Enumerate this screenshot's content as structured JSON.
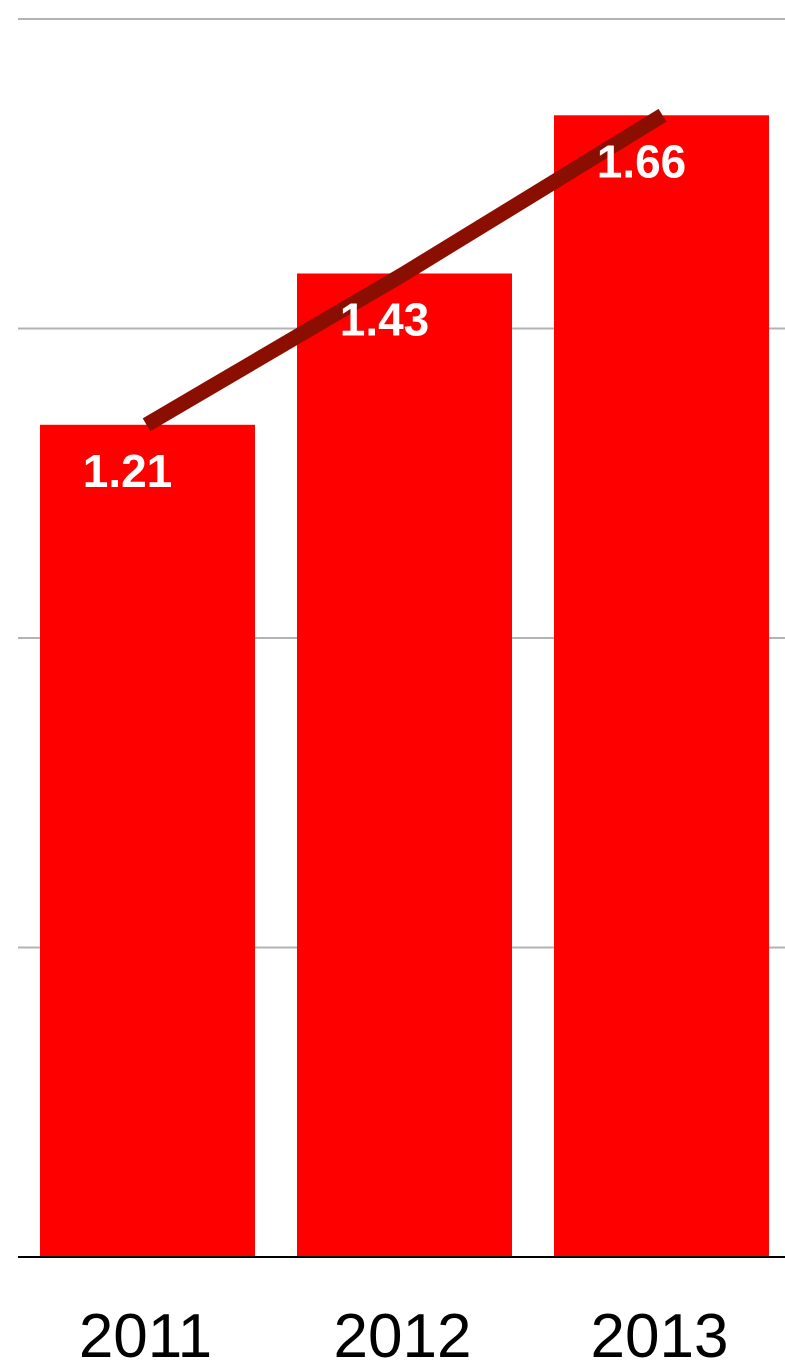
{
  "chart_data": {
    "type": "bar",
    "categories": [
      "2011",
      "2012",
      "2013"
    ],
    "values": [
      1.21,
      1.43,
      1.66
    ],
    "labels": [
      "1.21",
      "1.43",
      "1.66"
    ],
    "trend_line": true,
    "title": "",
    "xlabel": "",
    "ylabel": "",
    "ylim": [
      0,
      1.8
    ],
    "y_gridlines": [
      0.45,
      0.9,
      1.35,
      1.8
    ],
    "grid": true,
    "legend": "none",
    "colors": {
      "bar": "#ff0000",
      "trend": "#8b0f00",
      "grid": "#b3b3b3",
      "axis": "#000000",
      "bar_label": "#ffffff",
      "tick_label": "#000000"
    }
  }
}
